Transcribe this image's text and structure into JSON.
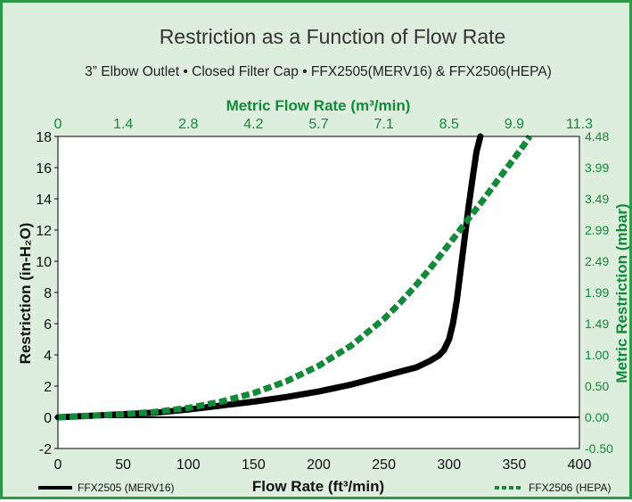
{
  "colors": {
    "background": "#ddeedd",
    "border": "#2e9a49",
    "metric": "#128a3a",
    "series_merv16": "#000000",
    "series_hepa": "#128a3a"
  },
  "chart_data": {
    "type": "line",
    "title": "Restriction as a Function of Flow Rate",
    "subtitle": "3” Elbow Outlet • Closed Filter Cap • FFX2505(MERV16) & FFX2506(HEPA)",
    "xlabel": "Flow Rate (ft³/min)",
    "ylabel": "Restriction (in-H₂O)",
    "x2label": "Metric Flow Rate (m³/min)",
    "y2label": "Metric Restriction (mbar)",
    "xlim": [
      0,
      400
    ],
    "ylim": [
      -2,
      18
    ],
    "x_ticks": [
      "0",
      "50",
      "100",
      "150",
      "200",
      "250",
      "300",
      "350",
      "400"
    ],
    "y_ticks": [
      "-2",
      "0",
      "2",
      "4",
      "6",
      "8",
      "10",
      "12",
      "14",
      "16",
      "18"
    ],
    "x2_ticks": [
      "0",
      "1.4",
      "2.8",
      "4.2",
      "5.7",
      "7.1",
      "8.5",
      "9.9",
      "11.3"
    ],
    "y2_ticks": [
      "-0.50",
      "0.00",
      "0.50",
      "1.00",
      "1.49",
      "1.99",
      "2.49",
      "2.99",
      "3.49",
      "3.99",
      "4.48"
    ],
    "grid": false,
    "legend_position": "bottom",
    "series": [
      {
        "name": "FFX2505 (MERV16)",
        "color": "#000000",
        "style": "solid",
        "x": [
          0,
          25,
          50,
          75,
          100,
          125,
          150,
          175,
          200,
          225,
          250,
          275,
          285,
          292,
          296,
          300,
          303,
          306,
          309,
          312,
          315,
          318,
          321,
          324
        ],
        "y": [
          0,
          0.1,
          0.2,
          0.3,
          0.5,
          0.75,
          1.0,
          1.3,
          1.65,
          2.1,
          2.65,
          3.2,
          3.6,
          3.95,
          4.3,
          5.0,
          6.0,
          7.5,
          9.5,
          11.5,
          13.5,
          15.3,
          17.0,
          18.0
        ]
      },
      {
        "name": "FFX2506 (HEPA)",
        "color": "#128a3a",
        "style": "dashed",
        "x": [
          0,
          25,
          50,
          75,
          100,
          125,
          150,
          175,
          200,
          225,
          250,
          262,
          275,
          288,
          300,
          312,
          325,
          340,
          350,
          357,
          362
        ],
        "y": [
          0,
          0.1,
          0.2,
          0.35,
          0.6,
          1.0,
          1.55,
          2.3,
          3.3,
          4.6,
          6.3,
          7.3,
          8.5,
          9.8,
          11.1,
          12.4,
          13.8,
          15.5,
          16.6,
          17.4,
          18.0
        ]
      }
    ]
  }
}
